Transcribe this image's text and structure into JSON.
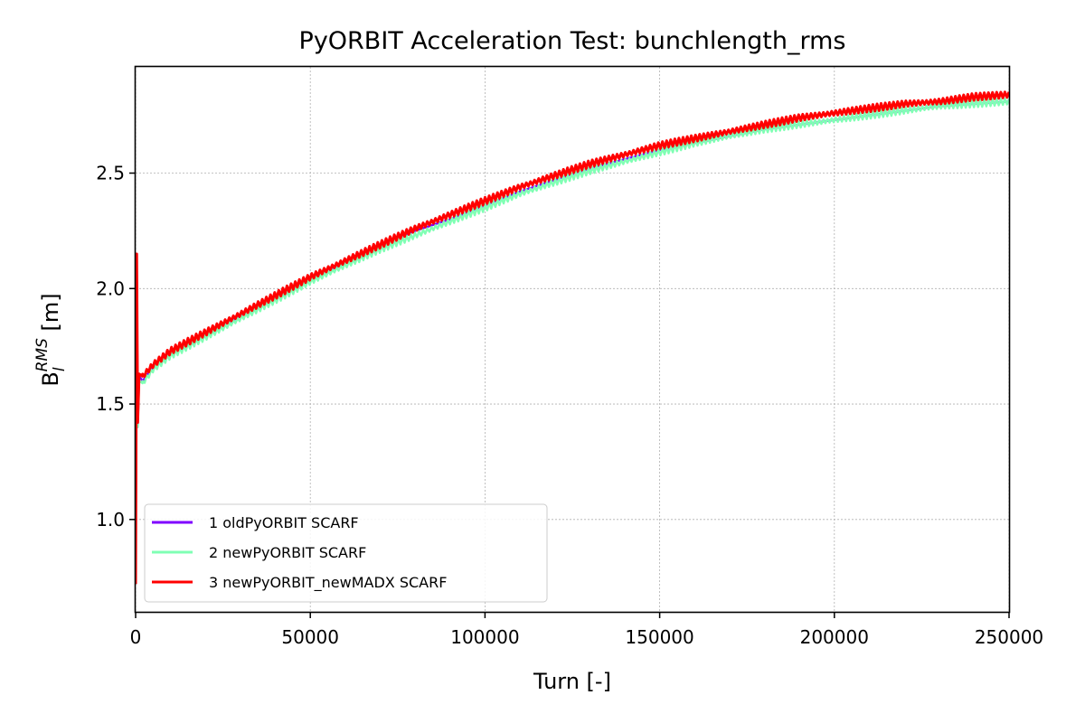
{
  "chart_data": {
    "type": "line",
    "title": "PyORBIT Acceleration Test: bunchlength_rms",
    "xlabel": "Turn [-]",
    "ylabel_main": "B",
    "ylabel_sub": "l",
    "ylabel_sup": "RMS",
    "ylabel_unit": " [m]",
    "xlim": [
      0,
      250000
    ],
    "ylim": [
      0.6,
      2.96
    ],
    "x_ticks": [
      0,
      50000,
      100000,
      150000,
      200000,
      250000
    ],
    "x_tick_labels": [
      "0",
      "50000",
      "100000",
      "150000",
      "200000",
      "250000"
    ],
    "y_ticks": [
      1.0,
      1.5,
      2.0,
      2.5
    ],
    "y_tick_labels": [
      "1.0",
      "1.5",
      "2.0",
      "2.5"
    ],
    "grid": true,
    "legend_position": "lower-left",
    "series": [
      {
        "name": "1 oldPyORBIT SCARF",
        "color": "#8000ff",
        "x": [
          0,
          300,
          600,
          1000,
          2000,
          5000,
          10000,
          20000,
          30000,
          40000,
          50000,
          60000,
          70000,
          80000,
          90000,
          100000,
          110000,
          120000,
          130000,
          140000,
          150000,
          160000,
          170000,
          180000,
          190000,
          200000,
          210000,
          220000,
          230000,
          240000,
          250000
        ],
        "y": [
          0.72,
          2.15,
          1.4,
          1.62,
          1.6,
          1.66,
          1.72,
          1.8,
          1.88,
          1.96,
          2.04,
          2.11,
          2.18,
          2.25,
          2.3,
          2.36,
          2.42,
          2.47,
          2.52,
          2.56,
          2.6,
          2.63,
          2.66,
          2.69,
          2.71,
          2.73,
          2.75,
          2.77,
          2.79,
          2.8,
          2.81
        ],
        "band": 0.0
      },
      {
        "name": "2 newPyORBIT SCARF",
        "color": "#80ffb4",
        "x": [
          0,
          300,
          600,
          1000,
          2000,
          5000,
          10000,
          20000,
          30000,
          40000,
          50000,
          60000,
          70000,
          80000,
          90000,
          100000,
          110000,
          120000,
          130000,
          140000,
          150000,
          160000,
          170000,
          180000,
          190000,
          200000,
          210000,
          220000,
          230000,
          240000,
          250000
        ],
        "y": [
          0.72,
          2.15,
          1.4,
          1.6,
          1.59,
          1.65,
          1.71,
          1.79,
          1.87,
          1.95,
          2.03,
          2.1,
          2.17,
          2.23,
          2.29,
          2.35,
          2.41,
          2.46,
          2.51,
          2.55,
          2.59,
          2.63,
          2.66,
          2.69,
          2.71,
          2.73,
          2.75,
          2.77,
          2.79,
          2.8,
          2.81
        ],
        "band": 0.03
      },
      {
        "name": "3 newPyORBIT_newMADX SCARF",
        "color": "#ff0000",
        "x": [
          0,
          300,
          600,
          1000,
          2000,
          5000,
          10000,
          20000,
          30000,
          40000,
          50000,
          60000,
          70000,
          80000,
          90000,
          100000,
          110000,
          120000,
          130000,
          140000,
          150000,
          160000,
          170000,
          180000,
          190000,
          200000,
          210000,
          220000,
          230000,
          240000,
          250000
        ],
        "y": [
          0.72,
          2.15,
          1.42,
          1.63,
          1.62,
          1.67,
          1.73,
          1.81,
          1.89,
          1.97,
          2.05,
          2.12,
          2.19,
          2.26,
          2.32,
          2.38,
          2.44,
          2.49,
          2.54,
          2.58,
          2.62,
          2.65,
          2.68,
          2.71,
          2.74,
          2.76,
          2.78,
          2.8,
          2.81,
          2.83,
          2.84
        ],
        "band": 0.03
      }
    ]
  }
}
